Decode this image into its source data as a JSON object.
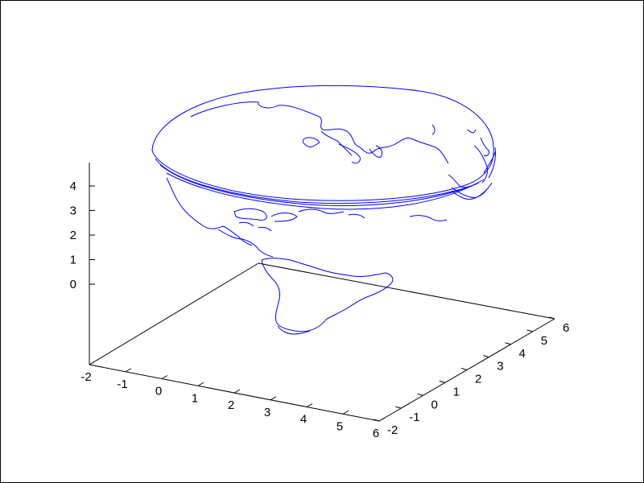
{
  "chart_data": {
    "type": "3d-surface-outline",
    "title": "",
    "series": [
      {
        "color": "#0000ff",
        "content": "world coastline outlines mapped onto a paraboloid bowl"
      }
    ],
    "axes": {
      "x": {
        "range": [
          -2,
          6
        ],
        "ticks": [
          "-2",
          "-1",
          "0",
          "1",
          "2",
          "3",
          "4",
          "5",
          "6"
        ]
      },
      "y": {
        "range": [
          -2,
          6
        ],
        "ticks": [
          "-2",
          "-1",
          "0",
          "1",
          "2",
          "3",
          "4",
          "5",
          "6"
        ]
      },
      "z": {
        "range": [
          0,
          4
        ],
        "ticks": [
          "0",
          "1",
          "2",
          "3",
          "4"
        ]
      }
    },
    "grid": false,
    "legend": "none"
  },
  "colors": {
    "line": "#0000ff",
    "axes": "#000000",
    "background": "#ffffff"
  }
}
